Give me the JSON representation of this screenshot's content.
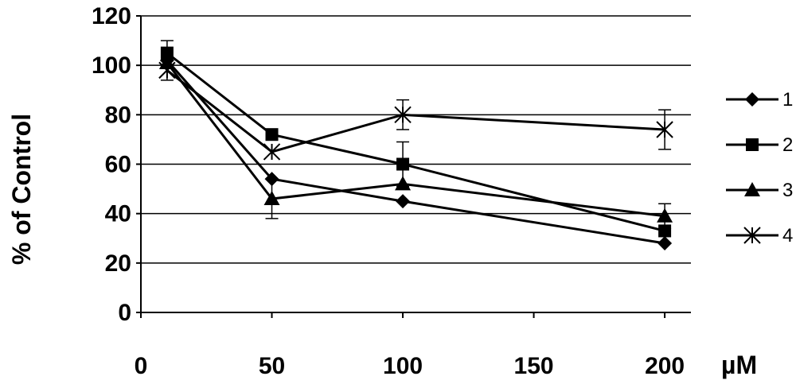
{
  "chart_data": {
    "type": "line",
    "ylabel": "% of Control",
    "x_unit_label": "µM",
    "xlim": [
      0,
      210
    ],
    "ylim": [
      0,
      120
    ],
    "x_ticks": [
      0,
      50,
      100,
      150,
      200
    ],
    "y_ticks": [
      0,
      20,
      40,
      60,
      80,
      100,
      120
    ],
    "grid": "horizontal",
    "legend_position": "right",
    "x": [
      10,
      50,
      100,
      200
    ],
    "series": [
      {
        "name": "1",
        "marker": "diamond",
        "values": [
          102,
          54,
          45,
          28
        ],
        "errors": [
          0,
          0,
          0,
          0
        ]
      },
      {
        "name": "2",
        "marker": "square",
        "values": [
          105,
          72,
          60,
          33
        ],
        "errors": [
          5,
          0,
          9,
          0
        ]
      },
      {
        "name": "3",
        "marker": "triangle",
        "values": [
          101,
          46,
          52,
          39
        ],
        "errors": [
          0,
          8,
          0,
          5
        ]
      },
      {
        "name": "4",
        "marker": "star",
        "values": [
          98,
          65,
          80,
          74
        ],
        "errors": [
          4,
          0,
          6,
          8
        ]
      }
    ],
    "colors": {
      "line": "#000000",
      "grid": "#000000",
      "background": "#ffffff"
    }
  }
}
